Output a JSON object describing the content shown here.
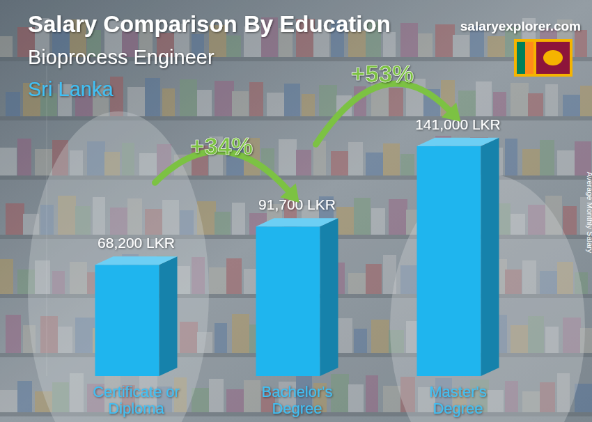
{
  "chart_data": {
    "type": "bar",
    "title": "Salary Comparison By Education",
    "subtitle": "Bioprocess Engineer",
    "location": "Sri Lanka",
    "source": "salaryexplorer.com",
    "y_label": "Average Monthly Salary",
    "annotations": [
      "+34%",
      "+53%"
    ],
    "categories": [
      "Certificate or Diploma",
      "Bachelor's Degree",
      "Master's Degree"
    ],
    "values": [
      68200,
      91700,
      141000
    ],
    "value_labels": [
      "68,200 LKR",
      "91,700 LKR",
      "141,000 LKR"
    ],
    "color": "#1fb5ee",
    "ylim": [
      0,
      190000
    ],
    "data_labels": true,
    "tick_labels": false,
    "grid": false
  }
}
